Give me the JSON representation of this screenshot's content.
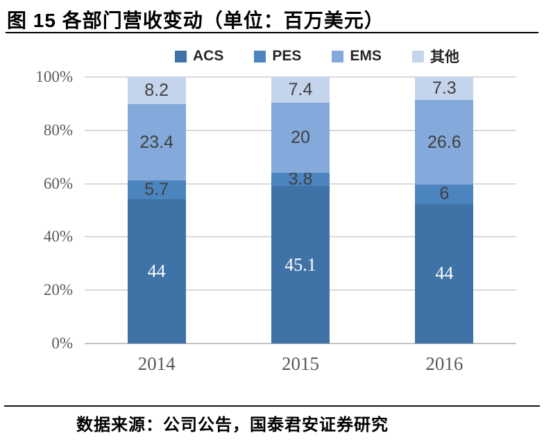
{
  "title": "图 15 各部门营收变动（单位：百万美元）",
  "source": "数据来源：公司公告，国泰君安证券研究",
  "colors": {
    "grid": "#D9D9D9",
    "baseline": "#C3C3C3",
    "axis_text": "#595959",
    "label_dark": "#3F3F3F",
    "label_light": "#FFFFFF",
    "acs": "#3F72A6",
    "pes": "#4C84C0",
    "ems": "#84A9DB",
    "other": "#C4D4EC"
  },
  "chart_data": {
    "type": "bar",
    "variant": "stacked-100-percent",
    "title": "图 15 各部门营收变动（单位：百万美元）",
    "unit": "百万美元",
    "categories": [
      "2014",
      "2015",
      "2016"
    ],
    "series": [
      {
        "key": "acs",
        "name": "ACS",
        "color": "#3F72A6",
        "values": [
          44,
          45.1,
          44
        ],
        "labels": [
          "44",
          "45.1",
          "44"
        ],
        "light_label": true
      },
      {
        "key": "pes",
        "name": "PES",
        "color": "#4C84C0",
        "values": [
          5.7,
          3.8,
          6
        ],
        "labels": [
          "5.7",
          "3.8",
          "6"
        ],
        "light_label": false
      },
      {
        "key": "ems",
        "name": "EMS",
        "color": "#84A9DB",
        "values": [
          23.4,
          20,
          26.6
        ],
        "labels": [
          "23.4",
          "20",
          "26.6"
        ],
        "light_label": false
      },
      {
        "key": "other",
        "name": "其他",
        "color": "#C4D4EC",
        "values": [
          8.2,
          7.4,
          7.3
        ],
        "labels": [
          "8.2",
          "7.4",
          "7.3"
        ],
        "light_label": false
      }
    ],
    "y_ticks": [
      "0%",
      "20%",
      "40%",
      "60%",
      "80%",
      "100%"
    ],
    "ylim": [
      0,
      100
    ],
    "grid": true,
    "legend_position": "top"
  }
}
